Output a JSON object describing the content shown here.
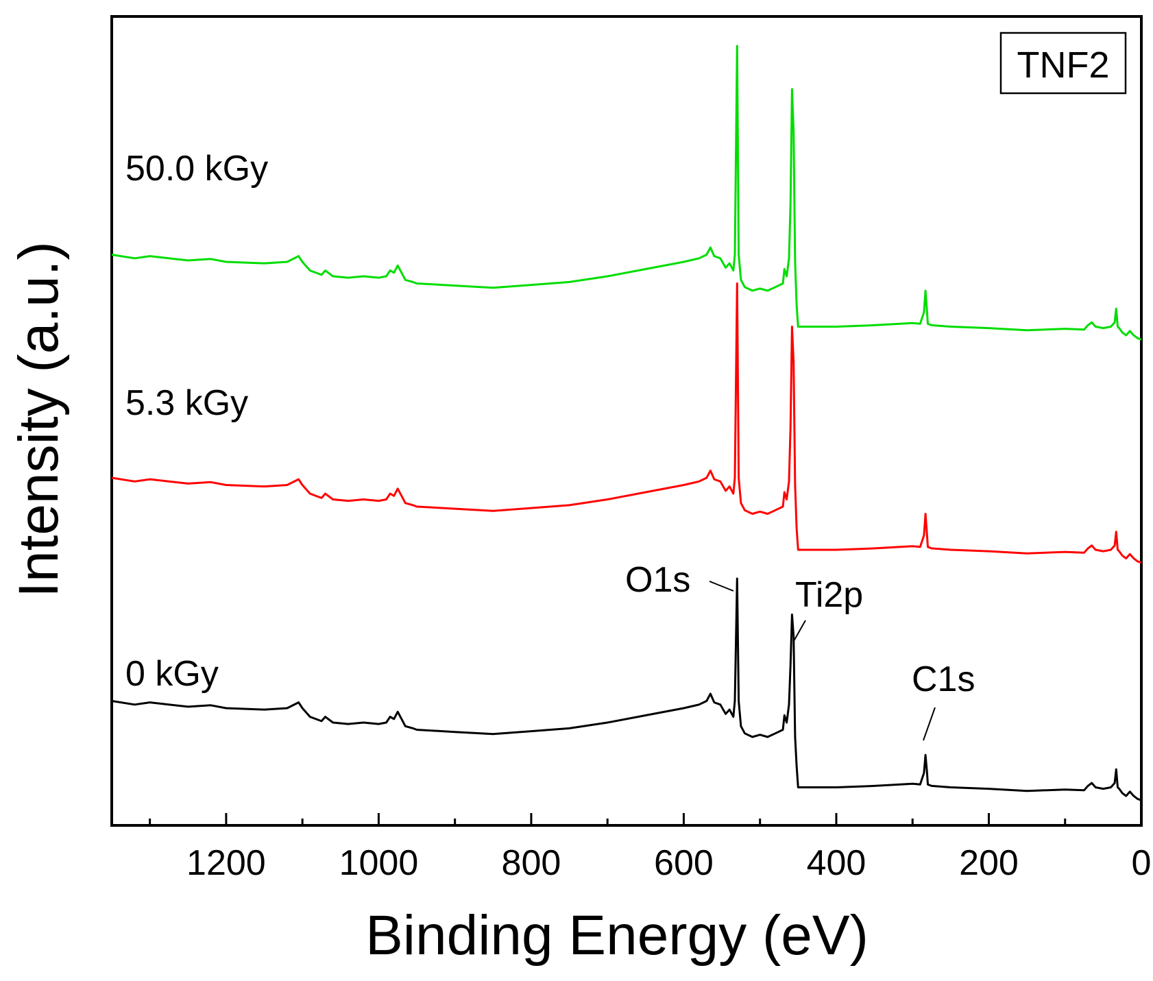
{
  "chart_data": {
    "type": "line",
    "title": "",
    "sample_label": "TNF2",
    "xlabel": "Binding Energy (eV)",
    "ylabel": "Intensity (a.u.)",
    "xlim": [
      1350,
      0
    ],
    "xticks": [
      1200,
      1000,
      800,
      600,
      400,
      200,
      0
    ],
    "xtick_labels": [
      "1200",
      "1000",
      "800",
      "600",
      "400",
      "200",
      "0"
    ],
    "ylim": [
      0,
      1
    ],
    "series": [
      {
        "name": "50.0 kGy",
        "color": "#00dd00",
        "offset": 0.64,
        "x": [
          1350,
          1320,
          1300,
          1250,
          1220,
          1200,
          1150,
          1120,
          1105,
          1100,
          1090,
          1075,
          1070,
          1060,
          1040,
          1020,
          1000,
          990,
          985,
          980,
          975,
          970,
          965,
          955,
          950,
          900,
          850,
          800,
          750,
          700,
          650,
          600,
          580,
          570,
          565,
          560,
          552,
          545,
          540,
          535,
          533,
          530,
          528,
          525,
          520,
          510,
          500,
          490,
          480,
          470,
          468,
          465,
          462,
          460,
          458,
          456,
          454,
          452,
          450,
          400,
          350,
          300,
          290,
          285,
          283,
          281,
          280,
          275,
          250,
          200,
          150,
          100,
          75,
          70,
          65,
          60,
          50,
          40,
          35,
          33,
          31,
          29,
          25,
          20,
          15,
          10,
          5,
          0
        ],
        "y": [
          0.13,
          0.125,
          0.128,
          0.122,
          0.124,
          0.12,
          0.118,
          0.12,
          0.128,
          0.12,
          0.108,
          0.102,
          0.108,
          0.1,
          0.098,
          0.1,
          0.098,
          0.1,
          0.108,
          0.105,
          0.115,
          0.105,
          0.095,
          0.092,
          0.09,
          0.087,
          0.084,
          0.088,
          0.092,
          0.1,
          0.11,
          0.12,
          0.125,
          0.13,
          0.14,
          0.128,
          0.125,
          0.112,
          0.118,
          0.108,
          0.13,
          0.42,
          0.13,
          0.095,
          0.085,
          0.08,
          0.083,
          0.08,
          0.085,
          0.09,
          0.11,
          0.1,
          0.125,
          0.2,
          0.36,
          0.3,
          0.12,
          0.06,
          0.03,
          0.03,
          0.032,
          0.035,
          0.034,
          0.05,
          0.08,
          0.05,
          0.034,
          0.032,
          0.03,
          0.028,
          0.025,
          0.027,
          0.026,
          0.032,
          0.036,
          0.03,
          0.028,
          0.03,
          0.036,
          0.055,
          0.03,
          0.028,
          0.022,
          0.018,
          0.024,
          0.018,
          0.014,
          0.012
        ]
      },
      {
        "name": "5.3 kGy",
        "color": "#ff0000",
        "offset": 0.33,
        "x": [
          1350,
          1320,
          1300,
          1250,
          1220,
          1200,
          1150,
          1120,
          1105,
          1100,
          1090,
          1075,
          1070,
          1060,
          1040,
          1020,
          1000,
          990,
          985,
          980,
          975,
          970,
          965,
          955,
          950,
          900,
          850,
          800,
          750,
          700,
          650,
          600,
          580,
          570,
          565,
          560,
          552,
          545,
          540,
          535,
          533,
          530,
          528,
          525,
          520,
          510,
          500,
          490,
          480,
          470,
          468,
          465,
          462,
          460,
          458,
          456,
          454,
          452,
          450,
          400,
          350,
          300,
          290,
          285,
          283,
          281,
          280,
          275,
          250,
          200,
          150,
          100,
          75,
          70,
          65,
          60,
          50,
          40,
          35,
          33,
          31,
          29,
          25,
          20,
          15,
          10,
          5,
          0
        ],
        "y": [
          0.13,
          0.125,
          0.128,
          0.122,
          0.124,
          0.12,
          0.118,
          0.12,
          0.128,
          0.12,
          0.108,
          0.102,
          0.108,
          0.1,
          0.098,
          0.1,
          0.098,
          0.1,
          0.108,
          0.105,
          0.115,
          0.105,
          0.095,
          0.092,
          0.09,
          0.087,
          0.084,
          0.088,
          0.092,
          0.1,
          0.11,
          0.12,
          0.125,
          0.13,
          0.14,
          0.128,
          0.125,
          0.112,
          0.118,
          0.108,
          0.13,
          0.4,
          0.13,
          0.095,
          0.085,
          0.08,
          0.083,
          0.08,
          0.085,
          0.09,
          0.11,
          0.1,
          0.125,
          0.2,
          0.34,
          0.29,
          0.12,
          0.06,
          0.03,
          0.03,
          0.032,
          0.035,
          0.034,
          0.05,
          0.08,
          0.05,
          0.034,
          0.032,
          0.03,
          0.028,
          0.025,
          0.027,
          0.026,
          0.032,
          0.036,
          0.03,
          0.028,
          0.03,
          0.036,
          0.055,
          0.03,
          0.028,
          0.022,
          0.018,
          0.024,
          0.018,
          0.014,
          0.012
        ]
      },
      {
        "name": "0 kGy",
        "color": "#000000",
        "offset": 0.0,
        "x": [
          1350,
          1320,
          1300,
          1250,
          1220,
          1200,
          1150,
          1120,
          1105,
          1100,
          1090,
          1075,
          1070,
          1060,
          1040,
          1020,
          1000,
          990,
          985,
          980,
          975,
          970,
          965,
          955,
          950,
          900,
          850,
          800,
          750,
          700,
          650,
          600,
          580,
          570,
          565,
          560,
          552,
          545,
          540,
          535,
          533,
          530,
          528,
          525,
          520,
          510,
          500,
          490,
          480,
          470,
          468,
          465,
          462,
          460,
          458,
          456,
          454,
          452,
          450,
          400,
          350,
          300,
          290,
          285,
          283,
          281,
          280,
          275,
          250,
          200,
          150,
          100,
          75,
          70,
          65,
          60,
          50,
          40,
          35,
          33,
          31,
          29,
          25,
          20,
          15,
          10,
          5,
          0
        ],
        "y": [
          0.15,
          0.145,
          0.148,
          0.142,
          0.144,
          0.14,
          0.138,
          0.14,
          0.148,
          0.14,
          0.128,
          0.122,
          0.128,
          0.12,
          0.118,
          0.12,
          0.118,
          0.12,
          0.128,
          0.125,
          0.135,
          0.125,
          0.115,
          0.112,
          0.11,
          0.107,
          0.104,
          0.108,
          0.112,
          0.12,
          0.13,
          0.14,
          0.145,
          0.15,
          0.16,
          0.148,
          0.145,
          0.132,
          0.138,
          0.128,
          0.15,
          0.32,
          0.15,
          0.115,
          0.105,
          0.1,
          0.103,
          0.1,
          0.105,
          0.11,
          0.13,
          0.12,
          0.145,
          0.2,
          0.27,
          0.24,
          0.1,
          0.06,
          0.03,
          0.03,
          0.032,
          0.035,
          0.034,
          0.05,
          0.075,
          0.05,
          0.034,
          0.032,
          0.03,
          0.028,
          0.025,
          0.027,
          0.026,
          0.032,
          0.036,
          0.03,
          0.028,
          0.03,
          0.036,
          0.055,
          0.03,
          0.028,
          0.022,
          0.018,
          0.024,
          0.018,
          0.014,
          0.012
        ]
      }
    ],
    "annotations": [
      {
        "text": "O1s",
        "x": 530
      },
      {
        "text": "Ti2p",
        "x": 458
      },
      {
        "text": "C1s",
        "x": 285
      }
    ]
  }
}
